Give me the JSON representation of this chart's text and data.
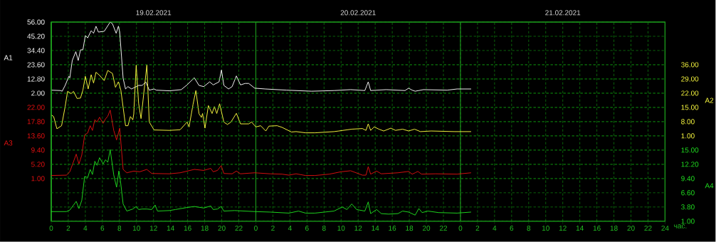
{
  "chart_data": [
    {
      "type": "line",
      "xlabel": "час.",
      "ylabel": "A1",
      "y2label": "A2",
      "xlim": [
        "2021-02-19T00:00",
        "2021-02-22T00:00"
      ],
      "xticks": [
        {
          "value": "2021-02-19T00:00",
          "label": "0"
        },
        {
          "value": "2021-02-19T02:00",
          "label": "2"
        },
        {
          "value": "2021-02-19T04:00",
          "label": "4"
        },
        {
          "value": "2021-02-19T06:00",
          "label": "6"
        },
        {
          "value": "2021-02-19T08:00",
          "label": "8"
        },
        {
          "value": "2021-02-19T10:00",
          "label": "10"
        },
        {
          "value": "2021-02-19T12:00",
          "label": "12"
        },
        {
          "value": "2021-02-19T14:00",
          "label": "14"
        },
        {
          "value": "2021-02-19T16:00",
          "label": "16"
        },
        {
          "value": "2021-02-19T18:00",
          "label": "18"
        },
        {
          "value": "2021-02-19T20:00",
          "label": "20"
        },
        {
          "value": "2021-02-19T22:00",
          "label": "22"
        },
        {
          "value": "2021-02-20T00:00",
          "label": "0"
        },
        {
          "value": "2021-02-20T02:00",
          "label": "2"
        },
        {
          "value": "2021-02-20T04:00",
          "label": "4"
        },
        {
          "value": "2021-02-20T06:00",
          "label": "6"
        },
        {
          "value": "2021-02-20T08:00",
          "label": "8"
        },
        {
          "value": "2021-02-20T10:00",
          "label": "10"
        },
        {
          "value": "2021-02-20T12:00",
          "label": "12"
        },
        {
          "value": "2021-02-20T14:00",
          "label": "14"
        },
        {
          "value": "2021-02-20T16:00",
          "label": "16"
        },
        {
          "value": "2021-02-20T18:00",
          "label": "18"
        },
        {
          "value": "2021-02-20T20:00",
          "label": "20"
        },
        {
          "value": "2021-02-20T22:00",
          "label": "22"
        },
        {
          "value": "2021-02-21T00:00",
          "label": "0"
        },
        {
          "value": "2021-02-21T02:00",
          "label": "2"
        },
        {
          "value": "2021-02-21T04:00",
          "label": "4"
        },
        {
          "value": "2021-02-21T06:00",
          "label": "6"
        },
        {
          "value": "2021-02-21T08:00",
          "label": "8"
        },
        {
          "value": "2021-02-21T10:00",
          "label": "10"
        },
        {
          "value": "2021-02-21T12:00",
          "label": "12"
        },
        {
          "value": "2021-02-21T14:00",
          "label": "14"
        },
        {
          "value": "2021-02-21T16:00",
          "label": "16"
        },
        {
          "value": "2021-02-21T18:00",
          "label": "18"
        },
        {
          "value": "2021-02-21T20:00",
          "label": "20"
        },
        {
          "value": "2021-02-21T22:00",
          "label": "22"
        },
        {
          "value": "2021-02-22T00:00",
          "label": "24"
        }
      ],
      "x2lim": [
        "2021-02-19T00:00",
        "2021-02-22T00:00"
      ],
      "x2ticks": [
        {
          "value": "2021-02-19T12:00",
          "label": "19.02.2021"
        },
        {
          "value": "2021-02-20T12:00",
          "label": "20.02.2021"
        },
        {
          "value": "2021-02-21T12:00",
          "label": "21.02.2021"
        }
      ],
      "ylim": [
        -95.2,
        56
      ],
      "yticks": [
        {
          "value": 56,
          "label": "56.00"
        },
        {
          "value": 45.2,
          "label": "45.20"
        },
        {
          "value": 34.4,
          "label": "34.40"
        },
        {
          "value": 23.6,
          "label": "23.60"
        },
        {
          "value": 12.8,
          "label": "12.80"
        },
        {
          "value": 2,
          "label": "2.00"
        }
      ],
      "y2lim": [
        -41,
        57
      ],
      "y2ticks": [
        {
          "value": 36,
          "label": "36.00"
        },
        {
          "value": 29,
          "label": "29.00"
        },
        {
          "value": 22,
          "label": "22.00"
        },
        {
          "value": 15,
          "label": "15.00"
        },
        {
          "value": 8,
          "label": "8.00"
        },
        {
          "value": 1,
          "label": "1.00"
        }
      ],
      "grid": true,
      "series": [
        {
          "axis": "y",
          "color": "#ffffff",
          "x": [
            "2021-02-19T00:00",
            "2021-02-19T01:05",
            "2021-02-19T01:17",
            "2021-02-19T01:38",
            "2021-02-19T02:04",
            "2021-02-19T02:11",
            "2021-02-19T02:28",
            "2021-02-19T02:53",
            "2021-02-19T03:10",
            "2021-02-19T03:26",
            "2021-02-19T03:43",
            "2021-02-19T04:00",
            "2021-02-19T04:17",
            "2021-02-19T04:41",
            "2021-02-19T04:58",
            "2021-02-19T05:15",
            "2021-02-19T05:32",
            "2021-02-19T06:13",
            "2021-02-19T06:55",
            "2021-02-19T07:11",
            "2021-02-19T07:37",
            "2021-02-19T07:53",
            "2021-02-19T08:02",
            "2021-02-19T08:26",
            "2021-02-19T08:43",
            "2021-02-19T09:00",
            "2021-02-19T09:25",
            "2021-02-19T10:15",
            "2021-02-19T10:40",
            "2021-02-19T11:05",
            "2021-02-19T11:30",
            "2021-02-19T12:04",
            "2021-02-19T12:20",
            "2021-02-19T13:52",
            "2021-02-19T15:15",
            "2021-02-19T15:56",
            "2021-02-19T16:47",
            "2021-02-19T17:20",
            "2021-02-19T17:53",
            "2021-02-19T18:35",
            "2021-02-19T19:00",
            "2021-02-19T19:41",
            "2021-02-19T19:58",
            "2021-02-19T20:15",
            "2021-02-19T20:48",
            "2021-02-19T21:13",
            "2021-02-19T21:43",
            "2021-02-19T22:12",
            "2021-02-19T22:45",
            "2021-02-19T23:10",
            "2021-02-19T23:52",
            "2021-02-20T01:07",
            "2021-02-20T03:37",
            "2021-02-20T06:32",
            "2021-02-20T09:10",
            "2021-02-20T11:07",
            "2021-02-20T12:47",
            "2021-02-20T13:11",
            "2021-02-20T13:28",
            "2021-02-20T15:17",
            "2021-02-20T17:30",
            "2021-02-20T17:55",
            "2021-02-20T18:20",
            "2021-02-20T18:41",
            "2021-02-20T19:40",
            "2021-02-20T22:26",
            "2021-02-20T23:36",
            "2021-02-21T01:15"
          ],
          "values": [
            4.3,
            4.0,
            3.5,
            7.9,
            14.8,
            13.7,
            26.8,
            33.5,
            26.8,
            34.9,
            35,
            45.7,
            44.0,
            49.4,
            47.5,
            52.8,
            48.4,
            49,
            56,
            54.7,
            47.5,
            52.9,
            48.4,
            13.3,
            5.2,
            7.0,
            5.2,
            7.9,
            7.9,
            10.6,
            4.3,
            5.2,
            4.3,
            3.8,
            4.7,
            8.3,
            13.7,
            7.9,
            7.0,
            10.6,
            8.3,
            10.6,
            19.6,
            7.9,
            5.2,
            7.0,
            15.1,
            8.3,
            9.4,
            9.4,
            5.8,
            5.2,
            4.3,
            3.5,
            4.0,
            4.7,
            4.0,
            10.6,
            4.0,
            4.7,
            4.0,
            5.8,
            4.3,
            3.5,
            4.7,
            4.3,
            5.2,
            5.2
          ]
        },
        {
          "axis": "y2",
          "color": "#ffff40",
          "x": [
            "2021-02-19T00:00",
            "2021-02-19T00:17",
            "2021-02-19T00:40",
            "2021-02-19T01:13",
            "2021-02-19T01:38",
            "2021-02-19T01:55",
            "2021-02-19T02:20",
            "2021-02-19T02:37",
            "2021-02-19T03:02",
            "2021-02-19T03:26",
            "2021-02-19T03:43",
            "2021-02-19T04:00",
            "2021-02-19T04:20",
            "2021-02-19T04:41",
            "2021-02-19T04:58",
            "2021-02-19T05:15",
            "2021-02-19T05:40",
            "2021-02-19T06:13",
            "2021-02-19T06:38",
            "2021-02-19T07:11",
            "2021-02-19T07:32",
            "2021-02-19T07:53",
            "2021-02-19T08:10",
            "2021-02-19T08:43",
            "2021-02-19T09:00",
            "2021-02-19T09:17",
            "2021-02-19T09:34",
            "2021-02-19T09:41",
            "2021-02-19T09:58",
            "2021-02-19T10:15",
            "2021-02-19T10:32",
            "2021-02-19T11:13",
            "2021-02-19T11:30",
            "2021-02-19T12:04",
            "2021-02-19T13:52",
            "2021-02-19T15:07",
            "2021-02-19T15:56",
            "2021-02-19T16:10",
            "2021-02-19T16:38",
            "2021-02-19T16:58",
            "2021-02-19T17:20",
            "2021-02-19T17:37",
            "2021-02-19T17:45",
            "2021-02-19T18:02",
            "2021-02-19T18:26",
            "2021-02-19T18:52",
            "2021-02-19T19:08",
            "2021-02-19T19:25",
            "2021-02-19T19:45",
            "2021-02-19T20:15",
            "2021-02-19T20:40",
            "2021-02-19T21:05",
            "2021-02-19T21:43",
            "2021-02-19T22:12",
            "2021-02-19T23:10",
            "2021-02-19T23:30",
            "2021-02-20T00:00",
            "2021-02-20T00:34",
            "2021-02-20T01:10",
            "2021-02-20T01:32",
            "2021-02-20T02:30",
            "2021-02-20T03:04",
            "2021-02-20T04:10",
            "2021-02-20T04:43",
            "2021-02-20T05:50",
            "2021-02-20T06:56",
            "2021-02-20T09:10",
            "2021-02-20T09:43",
            "2021-02-20T11:15",
            "2021-02-20T12:30",
            "2021-02-20T12:55",
            "2021-02-20T13:11",
            "2021-02-20T13:28",
            "2021-02-20T13:53",
            "2021-02-20T14:26",
            "2021-02-20T15:00",
            "2021-02-20T15:50",
            "2021-02-20T16:23",
            "2021-02-20T17:13",
            "2021-02-20T17:55",
            "2021-02-20T18:37",
            "2021-02-20T19:18",
            "2021-02-20T20:34",
            "2021-02-20T23:20",
            "2021-02-21T01:15"
          ],
          "values": [
            11.3,
            10.5,
            4.5,
            6.0,
            15.4,
            22.9,
            21.8,
            22.9,
            19.4,
            19.6,
            23.5,
            30.3,
            24.1,
            31.1,
            27.0,
            32.3,
            30.8,
            28.2,
            33.2,
            31.7,
            24.9,
            27.6,
            23.5,
            6.0,
            6.0,
            10.5,
            8.9,
            11.8,
            35.8,
            17,
            9.5,
            35.8,
            7.8,
            3.9,
            3.7,
            4.0,
            7.8,
            5.4,
            16.5,
            23.3,
            11.9,
            10.1,
            12,
            4.8,
            15.9,
            12.0,
            15.4,
            12.0,
            16.8,
            7.8,
            6.6,
            7.8,
            12.1,
            6.9,
            6.9,
            7.8,
            5.4,
            6.0,
            3.4,
            5.8,
            6.0,
            5.2,
            2.9,
            3.1,
            2.5,
            2.5,
            3.1,
            3.4,
            4.3,
            4.6,
            3.7,
            6.9,
            3.7,
            5.4,
            4.3,
            3.4,
            4.8,
            3.7,
            4.3,
            3.4,
            4.3,
            3.1,
            3.4,
            3.1,
            3.1
          ]
        }
      ]
    },
    {
      "type": "line",
      "ylabel": "A3",
      "y2label": "A4",
      "tick_labels": "y",
      "xlim": [
        "2021-02-19T00:00",
        "2021-02-22T00:00"
      ],
      "ylim": [
        -11.6,
        47.2
      ],
      "yticks": [
        {
          "value": 22,
          "label": "22.00"
        },
        {
          "value": 17.8,
          "label": "17.80"
        },
        {
          "value": 13.6,
          "label": "13.60"
        },
        {
          "value": 9.4,
          "label": "9.40"
        },
        {
          "value": 5.2,
          "label": "5.20"
        },
        {
          "value": 1,
          "label": "1.00"
        }
      ],
      "y2lim": [
        1,
        40.2
      ],
      "y2ticks": [
        {
          "value": 15,
          "label": "15.00"
        },
        {
          "value": 12.2,
          "label": "12.20"
        },
        {
          "value": 9.4,
          "label": "9.40"
        },
        {
          "value": 6.6,
          "label": "6.60"
        },
        {
          "value": 3.8,
          "label": "3.80"
        },
        {
          "value": 1,
          "label": "1.00"
        }
      ],
      "grid": true,
      "series": [
        {
          "axis": "y",
          "color": "#e01010",
          "x": [
            "2021-02-19T00:00",
            "2021-02-19T01:47",
            "2021-02-19T02:11",
            "2021-02-19T02:56",
            "2021-02-19T03:15",
            "2021-02-19T03:35",
            "2021-02-19T03:55",
            "2021-02-19T04:17",
            "2021-02-19T04:34",
            "2021-02-19T04:50",
            "2021-02-19T05:07",
            "2021-02-19T05:23",
            "2021-02-19T05:40",
            "2021-02-19T06:05",
            "2021-02-19T06:22",
            "2021-02-19T06:38",
            "2021-02-19T06:55",
            "2021-02-19T07:20",
            "2021-02-19T07:40",
            "2021-02-19T08:02",
            "2021-02-19T08:26",
            "2021-02-19T08:52",
            "2021-02-19T09:41",
            "2021-02-19T10:23",
            "2021-02-19T11:13",
            "2021-02-19T11:47",
            "2021-02-19T13:52",
            "2021-02-19T15:07",
            "2021-02-19T16:47",
            "2021-02-19T17:53",
            "2021-02-19T18:43",
            "2021-02-19T19:00",
            "2021-02-19T19:30",
            "2021-02-19T19:56",
            "2021-02-19T20:15",
            "2021-02-19T21:13",
            "2021-02-19T21:43",
            "2021-02-19T22:12",
            "2021-02-19T23:52",
            "2021-02-20T01:40",
            "2021-02-20T03:04",
            "2021-02-20T03:53",
            "2021-02-20T04:43",
            "2021-02-20T05:50",
            "2021-02-20T06:56",
            "2021-02-20T08:37",
            "2021-02-20T10:00",
            "2021-02-20T11:07",
            "2021-02-20T12:30",
            "2021-02-20T12:55",
            "2021-02-20T13:11",
            "2021-02-20T13:28",
            "2021-02-20T14:10",
            "2021-02-20T14:43",
            "2021-02-20T16:40",
            "2021-02-20T17:55",
            "2021-02-20T18:20",
            "2021-02-20T18:41",
            "2021-02-20T19:00",
            "2021-02-20T19:26",
            "2021-02-20T21:04",
            "2021-02-20T23:36",
            "2021-02-21T01:15"
          ],
          "values": [
            1.9,
            2.0,
            3.0,
            8.2,
            5.3,
            7.9,
            13.8,
            14.5,
            16.6,
            15.2,
            18.4,
            17.7,
            19.1,
            17.3,
            18.6,
            19.4,
            21.2,
            15.2,
            12.4,
            15.9,
            3.7,
            2.7,
            3.2,
            3.0,
            3.7,
            2.5,
            2.4,
            2.7,
            3.7,
            3.4,
            4.0,
            3.0,
            3.4,
            4.8,
            2.5,
            2.4,
            3.2,
            2.4,
            2.7,
            2.4,
            2.3,
            2.0,
            2.4,
            1.9,
            1.9,
            2.3,
            3.0,
            3.3,
            2.0,
            2.0,
            4.5,
            2.3,
            3.2,
            2.4,
            2.7,
            3.1,
            2.3,
            2.7,
            3.1,
            2.3,
            2.4,
            2.3,
            2.7
          ]
        },
        {
          "axis": "y2",
          "color": "#20e020",
          "x": [
            "2021-02-19T00:00",
            "2021-02-19T01:47",
            "2021-02-19T02:11",
            "2021-02-19T02:56",
            "2021-02-19T03:15",
            "2021-02-19T03:35",
            "2021-02-19T03:55",
            "2021-02-19T04:17",
            "2021-02-19T04:34",
            "2021-02-19T04:50",
            "2021-02-19T05:07",
            "2021-02-19T05:23",
            "2021-02-19T05:40",
            "2021-02-19T06:05",
            "2021-02-19T06:22",
            "2021-02-19T06:38",
            "2021-02-19T06:55",
            "2021-02-19T07:20",
            "2021-02-19T07:40",
            "2021-02-19T07:56",
            "2021-02-19T08:07",
            "2021-02-19T08:26",
            "2021-02-19T08:52",
            "2021-02-19T09:34",
            "2021-02-19T09:58",
            "2021-02-19T10:15",
            "2021-02-19T10:40",
            "2021-02-19T11:13",
            "2021-02-19T11:47",
            "2021-02-19T12:11",
            "2021-02-19T12:28",
            "2021-02-19T13:52",
            "2021-02-19T14:34",
            "2021-02-19T15:56",
            "2021-02-19T16:47",
            "2021-02-19T17:53",
            "2021-02-19T18:43",
            "2021-02-19T19:00",
            "2021-02-19T19:30",
            "2021-02-19T19:56",
            "2021-02-19T20:15",
            "2021-02-19T21:30",
            "2021-02-19T23:52",
            "2021-02-20T01:40",
            "2021-02-20T03:53",
            "2021-02-20T05:00",
            "2021-02-20T05:50",
            "2021-02-20T06:56",
            "2021-02-20T09:10",
            "2021-02-20T10:08",
            "2021-02-20T10:41",
            "2021-02-20T11:15",
            "2021-02-20T11:49",
            "2021-02-20T12:47",
            "2021-02-20T13:11",
            "2021-02-20T13:28",
            "2021-02-20T14:10",
            "2021-02-20T14:43",
            "2021-02-20T15:34",
            "2021-02-20T16:40",
            "2021-02-20T17:13",
            "2021-02-20T17:55",
            "2021-02-20T18:41",
            "2021-02-20T19:07",
            "2021-02-20T19:30",
            "2021-02-20T20:11",
            "2021-02-20T21:26",
            "2021-02-20T23:36",
            "2021-02-21T01:15"
          ],
          "values": [
            2.9,
            2.9,
            3.2,
            4.9,
            3.5,
            5.1,
            9.8,
            9.6,
            11.2,
            10.2,
            12.8,
            12.0,
            13.5,
            12.3,
            13.1,
            12.6,
            15.1,
            10.1,
            7.7,
            10.9,
            9.0,
            4.4,
            3.0,
            3.4,
            3.9,
            3.3,
            3.4,
            3.4,
            3.3,
            4.2,
            3.0,
            3.1,
            3.3,
            3.7,
            3.9,
            3.6,
            4.0,
            3.3,
            3.4,
            3.9,
            3.0,
            3.1,
            2.9,
            2.8,
            2.6,
            3.0,
            2.6,
            2.6,
            3.0,
            3.8,
            3.3,
            4.4,
            3.3,
            3.0,
            4.8,
            2.5,
            3.3,
            2.5,
            2.4,
            2.5,
            3.0,
            2.8,
            2.2,
            3.5,
            2.7,
            3.0,
            2.7,
            2.6,
            2.8
          ]
        }
      ]
    }
  ]
}
